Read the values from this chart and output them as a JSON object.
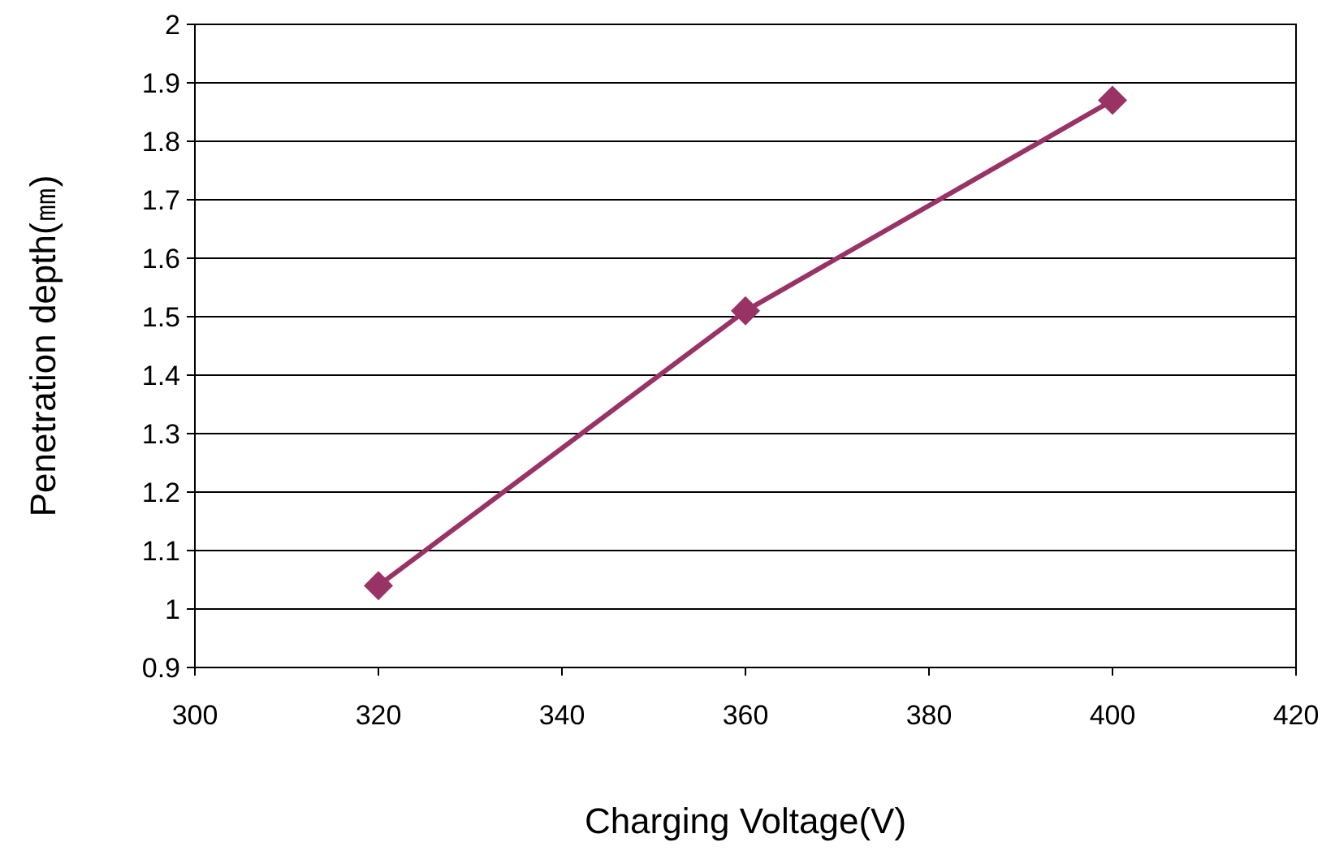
{
  "chart_data": {
    "type": "line",
    "xlabel": "Charging Voltage(V)",
    "ylabel": "Penetration depth(㎜)",
    "x": [
      320,
      360,
      400
    ],
    "series": [
      {
        "color": "#993366",
        "values": [
          1.04,
          1.51,
          1.87
        ]
      }
    ],
    "xlim": [
      300,
      420
    ],
    "xticks": [
      300,
      320,
      340,
      360,
      380,
      400,
      420
    ],
    "ylim": [
      0.9,
      2
    ],
    "yticks": [
      0.9,
      1,
      1.1,
      1.2,
      1.3,
      1.4,
      1.5,
      1.6,
      1.7,
      1.8,
      1.9,
      2
    ],
    "grid": "y",
    "marker": "diamond",
    "line_style": "solid"
  }
}
